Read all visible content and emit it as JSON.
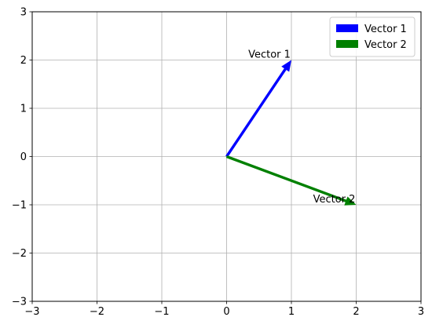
{
  "chart_data": {
    "type": "quiver",
    "title": "",
    "xlabel": "",
    "ylabel": "",
    "xlim": [
      -3,
      3
    ],
    "ylim": [
      -3,
      3
    ],
    "xticks": [
      -3,
      -2,
      -1,
      0,
      1,
      2,
      3
    ],
    "yticks": [
      -3,
      -2,
      -1,
      0,
      1,
      2,
      3
    ],
    "xtick_labels": [
      "−3",
      "−2",
      "−1",
      "0",
      "1",
      "2",
      "3"
    ],
    "ytick_labels": [
      "−3",
      "−2",
      "−1",
      "0",
      "1",
      "2",
      "3"
    ],
    "grid": true,
    "legend_position": "top-right",
    "series": [
      {
        "name": "Vector 1",
        "color": "#0000ff",
        "origin": [
          0,
          0
        ],
        "vector": [
          1,
          2
        ],
        "annotation": "Vector 1"
      },
      {
        "name": "Vector 2",
        "color": "#008000",
        "origin": [
          0,
          0
        ],
        "vector": [
          2,
          -1
        ],
        "annotation": "Vector 2"
      }
    ]
  }
}
